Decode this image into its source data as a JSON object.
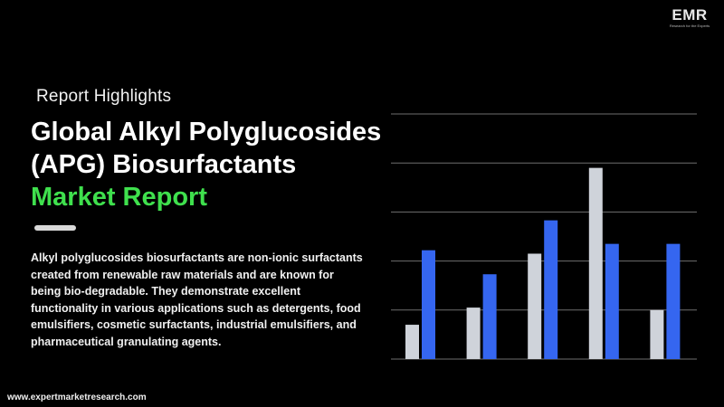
{
  "brand": {
    "logo_text": "EMR",
    "logo_tagline": "Research for the Experts"
  },
  "header": {
    "eyebrow": "Report Highlights",
    "title_line1": "Global Alkyl Polyglucosides",
    "title_line2": "(APG) Biosurfactants",
    "title_accent": "Market Report"
  },
  "description": "Alkyl polyglucosides biosurfactants are non-ionic surfactants created from renewable raw materials and are known for being bio-degradable. They demonstrate excellent functionality in various applications such as  detergents, food emulsifiers, cosmetic surfactants,  industrial emulsifiers, and pharmaceutical granulating agents.",
  "footer": {
    "url": "www.expertmarketresearch.com"
  },
  "colors": {
    "background": "#000000",
    "accent_green": "#3fe04d",
    "bar_grey": "#cfd3da",
    "bar_blue": "#3566f0",
    "gridline": "#6e6e6e"
  },
  "chart_data": {
    "type": "bar",
    "categories": [
      "",
      "",
      "",
      "",
      ""
    ],
    "series": [
      {
        "values": [
          0.7,
          1.05,
          2.15,
          3.9,
          1.0
        ],
        "color": "#cfd3da"
      },
      {
        "values": [
          2.22,
          1.73,
          2.83,
          2.35,
          2.35
        ],
        "color": "#3566f0"
      }
    ],
    "ylim": [
      0,
      5
    ],
    "gridlines": 5,
    "grid": true,
    "legend": "none"
  }
}
